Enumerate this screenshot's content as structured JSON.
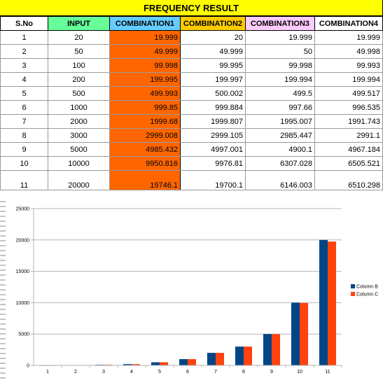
{
  "title": "FREQUENCY RESULT",
  "headers": [
    "S.No",
    "INPUT",
    "COMBINATION1",
    "COMBINATION2",
    "COMBINATION3",
    "COMBINATION4"
  ],
  "header_colors": [
    "#ffffff",
    "#66ff99",
    "#66ccff",
    "#ffcc00",
    "#ffccff",
    "#ffffff"
  ],
  "accent_color": "#ff6600",
  "rows": [
    [
      "1",
      "20",
      "19.999",
      "20",
      "19.999",
      "19.999"
    ],
    [
      "2",
      "50",
      "49.999",
      "49.999",
      "50",
      "49.998"
    ],
    [
      "3",
      "100",
      "99.998",
      "99.995",
      "99.998",
      "99.993"
    ],
    [
      "4",
      "200",
      "199.995",
      "199.997",
      "199.994",
      "199.994"
    ],
    [
      "5",
      "500",
      "499.993",
      "500.002",
      "499.5",
      "499.517"
    ],
    [
      "6",
      "1000",
      "999.85",
      "999.884",
      "997.66",
      "996.535"
    ],
    [
      "7",
      "2000",
      "1999.68",
      "1999.807",
      "1995.007",
      "1991.743"
    ],
    [
      "8",
      "3000",
      "2999.008",
      "2999.105",
      "2985.447",
      "2991.1"
    ],
    [
      "9",
      "5000",
      "4985.432",
      "4997.001",
      "4900.1",
      "4967.184"
    ],
    [
      "10",
      "10000",
      "9950.816",
      "9976.81",
      "6307.028",
      "6505.521"
    ],
    [
      "11",
      "20000",
      "19746.1",
      "19700.1",
      "6146.003",
      "6510.298"
    ]
  ],
  "chart_data": {
    "type": "bar",
    "categories": [
      "1",
      "2",
      "3",
      "4",
      "5",
      "6",
      "7",
      "8",
      "9",
      "10",
      "11"
    ],
    "series": [
      {
        "name": "Column B",
        "color": "#004586",
        "values": [
          20,
          50,
          100,
          200,
          500,
          1000,
          2000,
          3000,
          5000,
          10000,
          20000
        ]
      },
      {
        "name": "Column C",
        "color": "#ff420e",
        "values": [
          19.999,
          49.999,
          99.998,
          199.995,
          499.993,
          999.85,
          1999.68,
          2999.008,
          4985.432,
          9950.816,
          19746.1
        ]
      }
    ],
    "ylim": [
      0,
      25000
    ],
    "yticks": [
      "0",
      "5000",
      "10000",
      "15000",
      "20000",
      "25000"
    ],
    "grid": true,
    "legend": "right"
  }
}
